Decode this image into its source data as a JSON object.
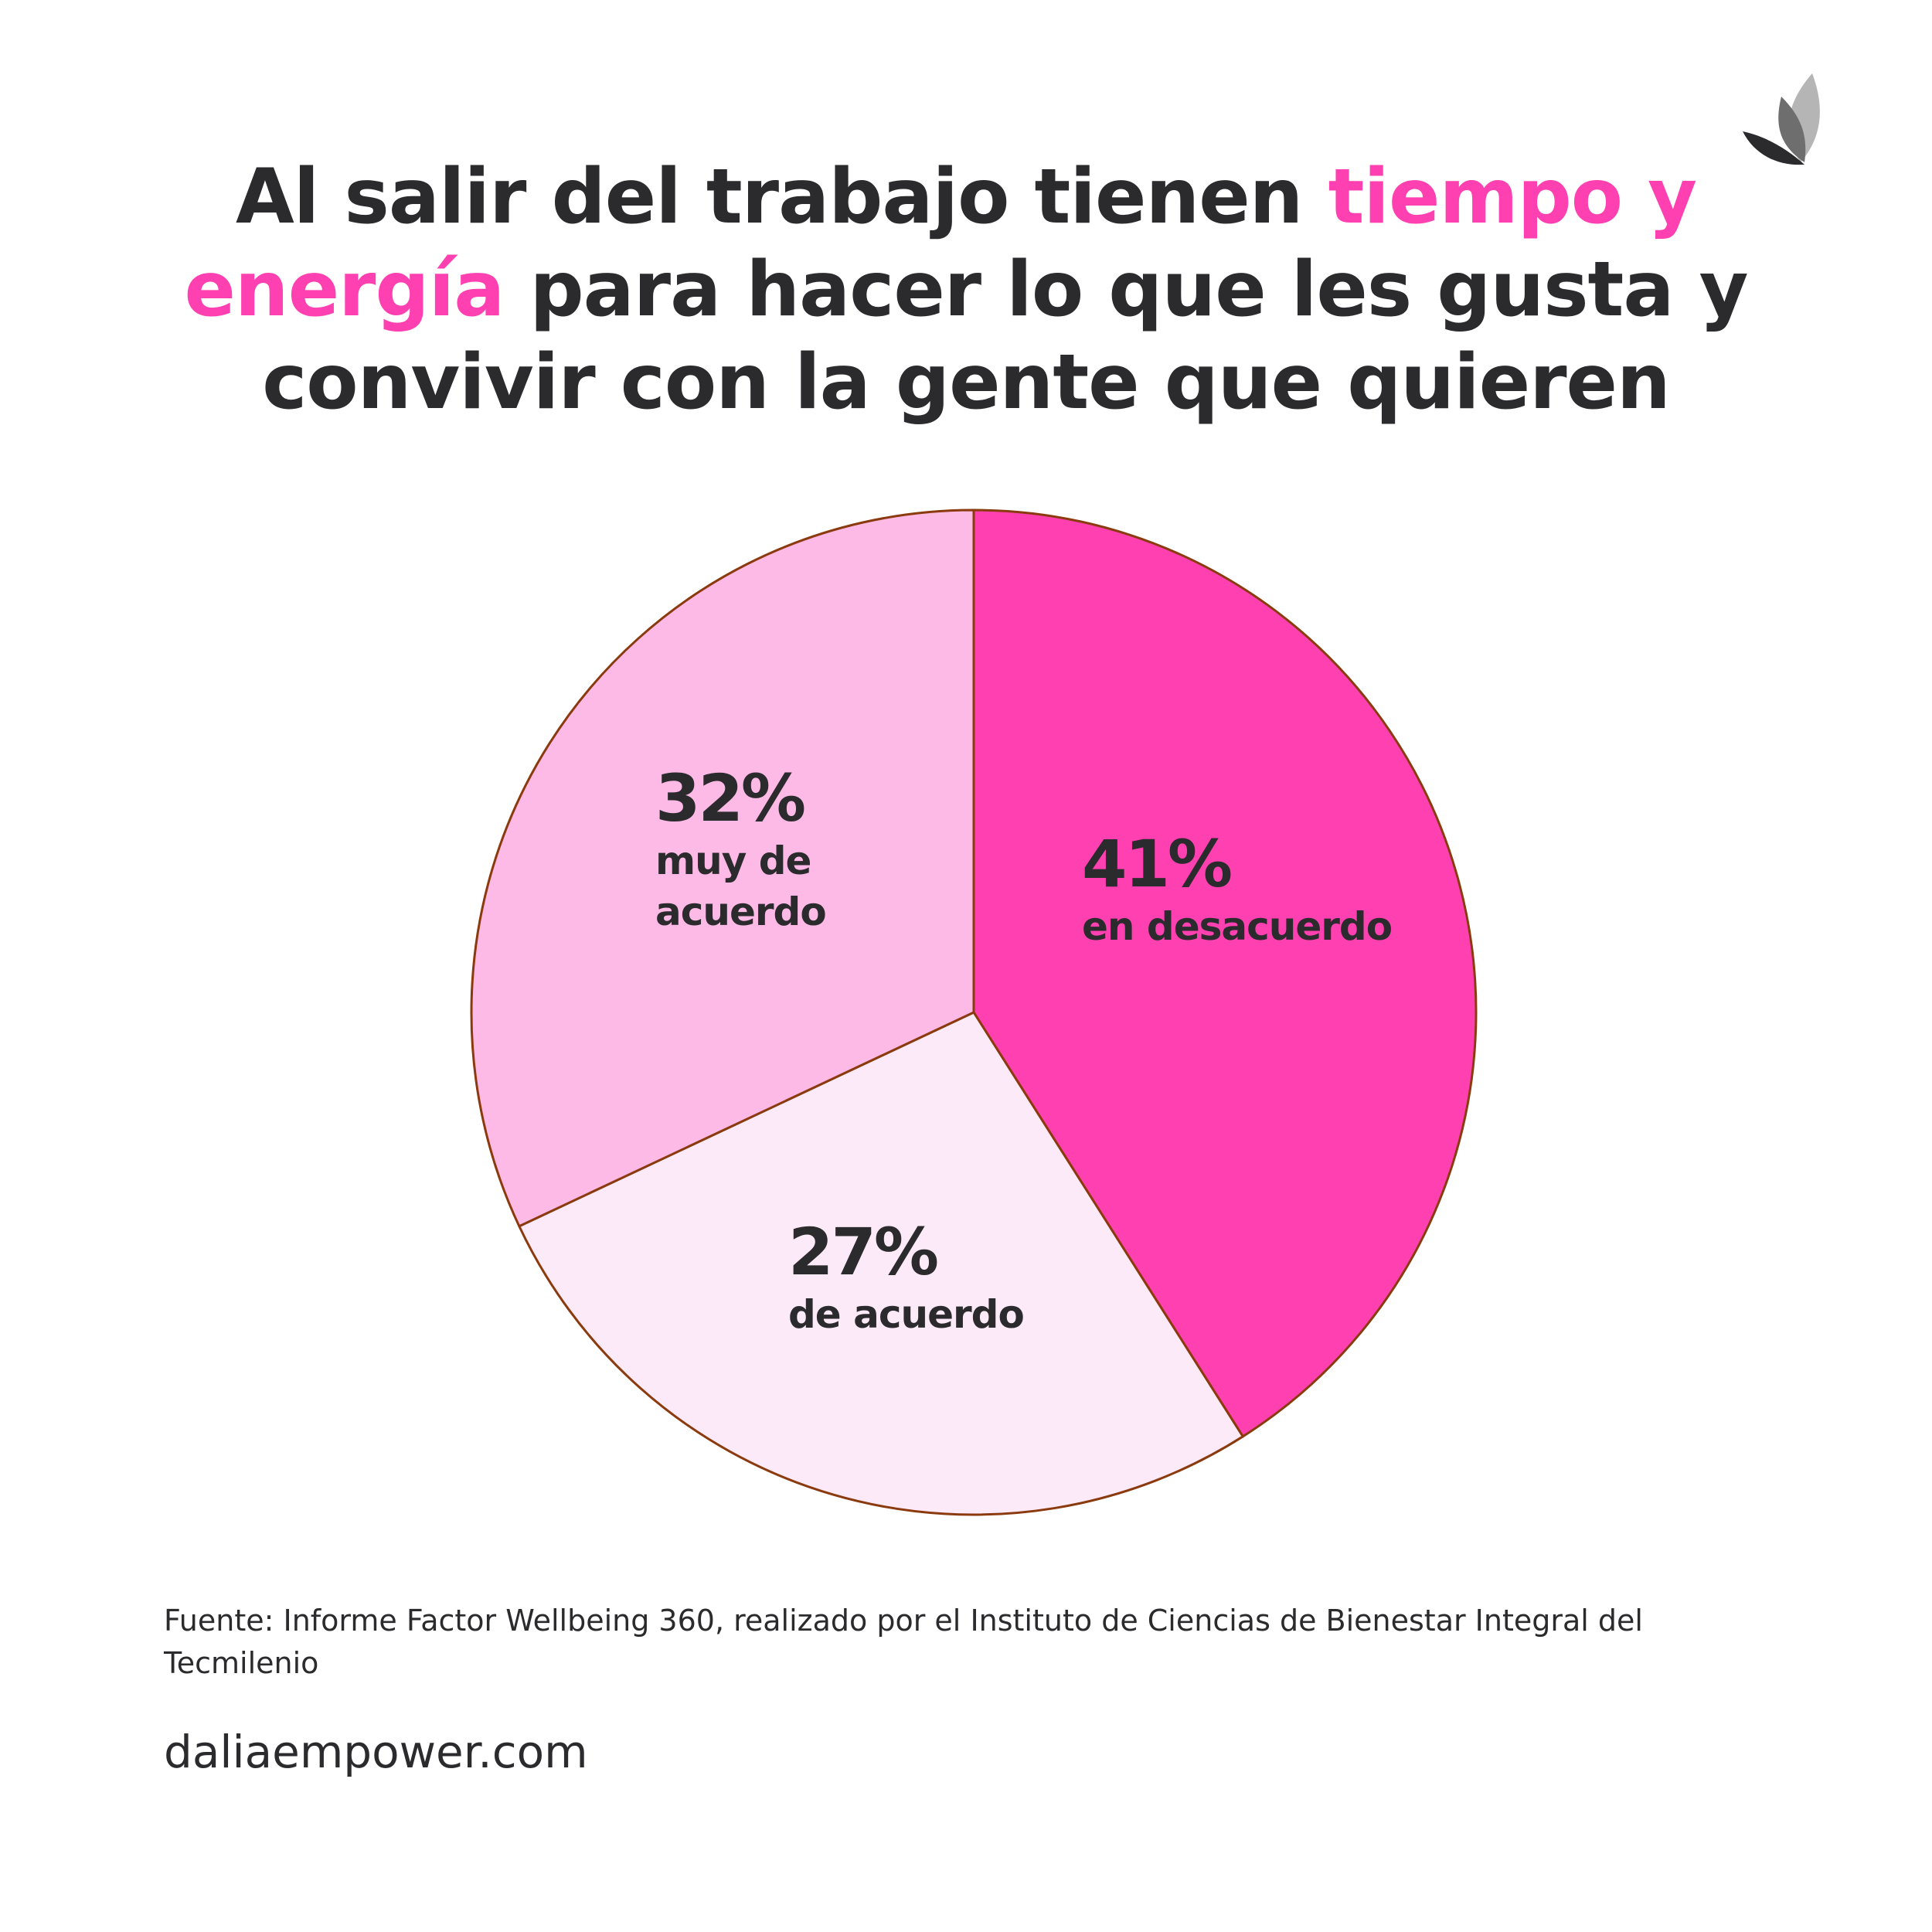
{
  "title": {
    "part1": "Al salir del trabajo tienen ",
    "highlight1": "tiempo y",
    "highlight2": "energía",
    "part2": " para hacer lo que les gusta y convivir con la gente que quieren",
    "highlight_color": "#ff40b0"
  },
  "logo": {
    "icon": "lotus-petals-icon",
    "colors": [
      "#2b2b2d",
      "#6e6e6e",
      "#b5b5b5"
    ]
  },
  "chart_data": {
    "type": "pie",
    "start_angle_deg": 0,
    "direction": "clockwise",
    "outline_color": "#8b3a0e",
    "slices": [
      {
        "value": 41,
        "label": "41%",
        "category": "en desacuerdo",
        "color": "#ff40b0"
      },
      {
        "value": 27,
        "label": "27%",
        "category": "de acuerdo",
        "color": "#fdeaf8"
      },
      {
        "value": 32,
        "label": "32%",
        "category": "muy de acuerdo",
        "color": "#fdbae6"
      }
    ]
  },
  "labels": {
    "s41": {
      "pct": "41%",
      "desc_lines": [
        "en desacuerdo"
      ]
    },
    "s32": {
      "pct": "32%",
      "desc_lines": [
        "muy de",
        "acuerdo"
      ]
    },
    "s27": {
      "pct": "27%",
      "desc_lines": [
        "de acuerdo"
      ]
    }
  },
  "source": "Fuente: Informe Factor Wellbeing 360, realizado por el Instituto de Ciencias de Bienestar Integral del Tecmilenio",
  "website": "daliaempower.com"
}
